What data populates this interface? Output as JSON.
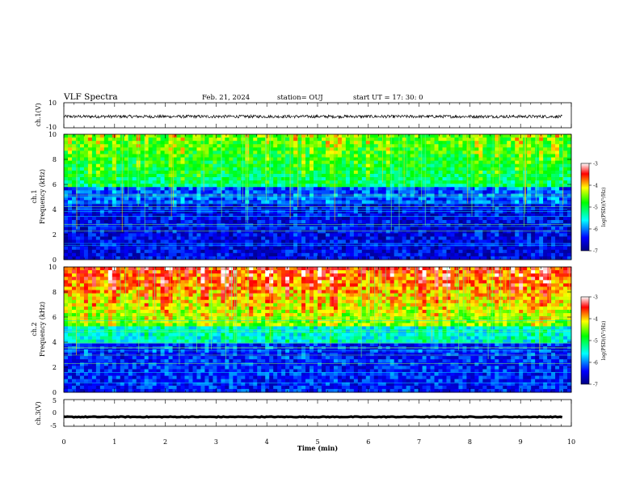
{
  "header": {
    "title": "VLF Spectra",
    "date": "Feb. 21, 2024",
    "station": "station= OUJ",
    "start": "start UT =   17: 30: 0"
  },
  "chart_data": [
    {
      "type": "line",
      "name": "ch1-waveform",
      "ylabel": "ch.1(V)",
      "ylim": [
        -10,
        10
      ],
      "yticks": [
        "10",
        "-10"
      ],
      "x_range": [
        0,
        9.82
      ],
      "baseline": -1,
      "noise_amplitude": 1.2
    },
    {
      "type": "heatmap",
      "name": "ch1-spectrogram",
      "ylabel_channel": "ch.1",
      "ylabel": "Frequency (kHz)",
      "ylim": [
        0,
        10
      ],
      "yticks": [
        "0",
        "2",
        "4",
        "6",
        "8",
        "10"
      ],
      "colorbar": {
        "label": "log(PSD)(V²/Hz)",
        "range": [
          -7,
          -3
        ],
        "ticks": [
          "-3",
          "-4",
          "-5",
          "-6",
          "-7"
        ]
      }
    },
    {
      "type": "heatmap",
      "name": "ch2-spectrogram",
      "ylabel_channel": "ch.2",
      "ylabel": "Frequency (kHz)",
      "ylim": [
        0,
        10
      ],
      "yticks": [
        "0",
        "2",
        "4",
        "6",
        "8",
        "10"
      ],
      "colorbar": {
        "label": "log(PSD)(V²/Hz)",
        "range": [
          -7,
          -3
        ],
        "ticks": [
          "-3",
          "-4",
          "-5",
          "-6",
          "-7"
        ]
      }
    },
    {
      "type": "line",
      "name": "ch3-waveform",
      "ylabel": "ch.3(V)",
      "ylim": [
        -5,
        5
      ],
      "yticks": [
        "5",
        "0",
        "-5"
      ],
      "x_range": [
        0,
        9.82
      ],
      "baseline": -1.5,
      "noise_amplitude": 0.15
    }
  ],
  "xaxis": {
    "label": "Time (min)",
    "xlim": [
      0,
      10
    ],
    "ticks": [
      "0",
      "1",
      "2",
      "3",
      "4",
      "5",
      "6",
      "7",
      "8",
      "9",
      "10"
    ]
  },
  "colors": {
    "colormap": [
      "#000080",
      "#0000ff",
      "#00ffff",
      "#00ff00",
      "#ffff00",
      "#ff0000",
      "#ffffff"
    ]
  }
}
